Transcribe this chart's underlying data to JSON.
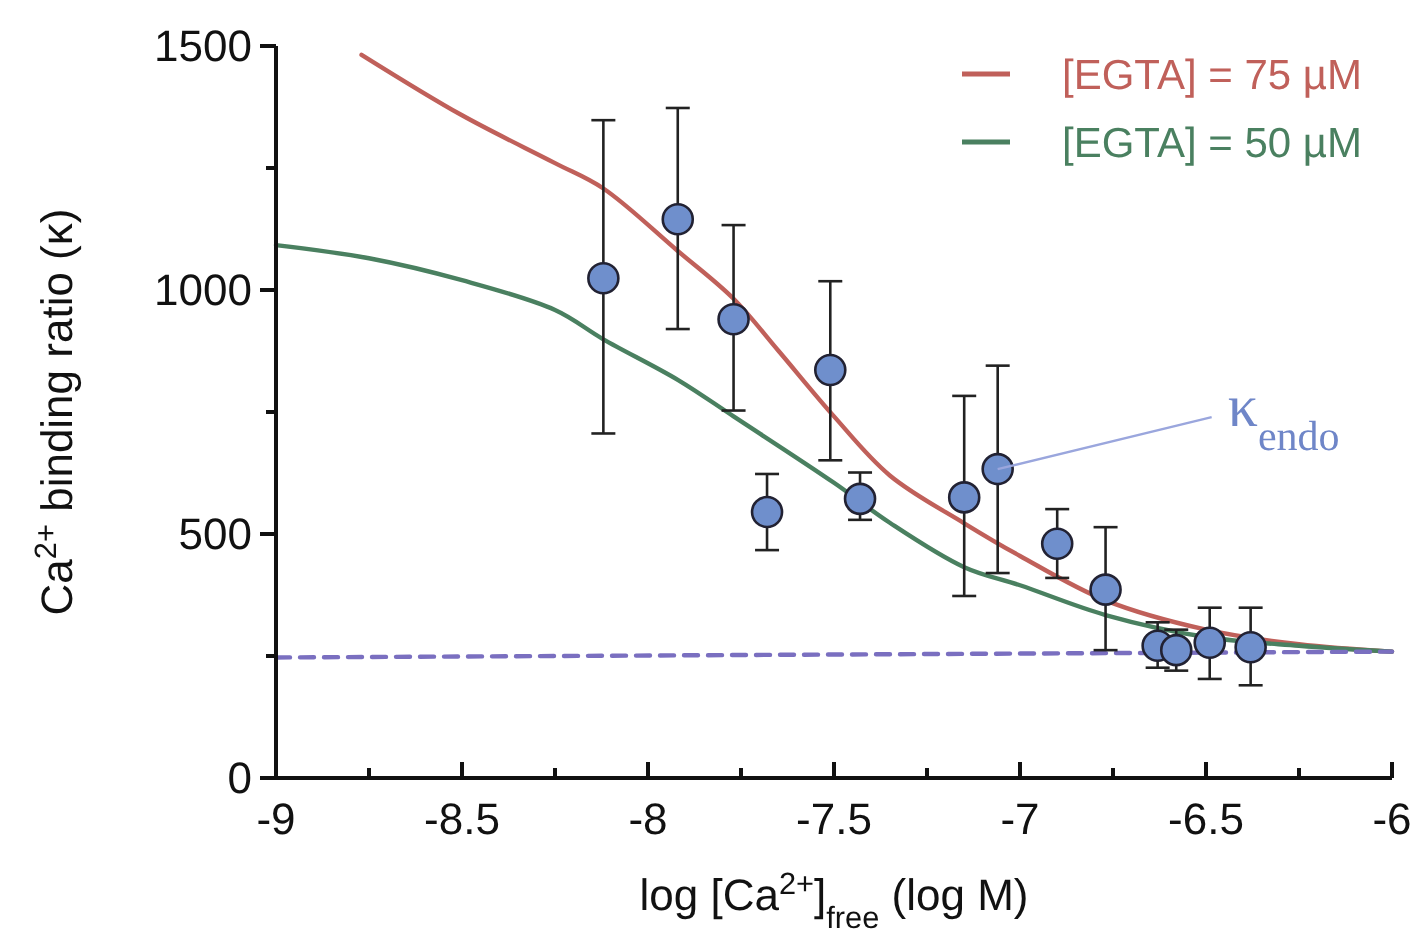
{
  "chart_data": {
    "type": "scatter",
    "xlabel": "log [Ca$^{2+}$]$_{free}$ (log M)",
    "ylabel": "Ca$^{2+}$ binding ratio (κ)",
    "xlim": [
      -9,
      -6
    ],
    "ylim": [
      0,
      1500
    ],
    "xticks": [
      -9,
      {
        "value": -8.75,
        "label": null
      },
      -8.5,
      {
        "value": -8.25,
        "label": null
      },
      -8,
      {
        "value": -7.75,
        "label": null
      },
      -7.5,
      {
        "value": -7.25,
        "label": null
      },
      -7,
      {
        "value": -6.75,
        "label": null
      },
      -6.5,
      {
        "value": -6.25,
        "label": null
      },
      -6
    ],
    "yticks": [
      0,
      {
        "value": 250,
        "label": null
      },
      500,
      {
        "value": 750,
        "label": null
      },
      1000,
      {
        "value": 1250,
        "label": null
      },
      1500
    ],
    "grid": false,
    "legend": "top right",
    "series": [
      {
        "name": "[EGTA] = 75 µM",
        "type": "line",
        "color": "#c0605a",
        "line_style": "solid",
        "x": [
          -8.77,
          -8.5,
          -8.25,
          -8.12,
          -7.92,
          -7.77,
          -7.65,
          -7.5,
          -7.35,
          -7.15,
          -7,
          -6.77,
          -6.5,
          -6.25,
          -6
        ],
        "values": [
          1482,
          1358,
          1260,
          1208,
          1080,
          982,
          876,
          741,
          620,
          522,
          455,
          364,
          304,
          274,
          259
        ]
      },
      {
        "name": "[EGTA] = 50 µM",
        "type": "line",
        "color": "#4a8060",
        "line_style": "solid",
        "x": [
          -9,
          -8.75,
          -8.5,
          -8.25,
          -8.12,
          -7.92,
          -7.77,
          -7.5,
          -7.35,
          -7.15,
          -7,
          -6.77,
          -6.5,
          -6.25,
          -6
        ],
        "values": [
          1092,
          1065,
          1020,
          959,
          899,
          816,
          741,
          605,
          523,
          432,
          395,
          334,
          289,
          271,
          259
        ]
      },
      {
        "type": "line",
        "color": "#7a6fc0",
        "line_style": "dashed",
        "x": [
          -9,
          -6
        ],
        "values": [
          247,
          259
        ]
      },
      {
        "marker": "circle",
        "color": "#6f8fcc",
        "x": [
          -8.12,
          -7.92,
          -7.77,
          -7.68,
          -7.51,
          -7.43,
          -7.15,
          -7.06,
          -6.9,
          -6.77,
          -6.63,
          -6.58,
          -6.49,
          -6.38
        ],
        "values": [
          1024,
          1145,
          940,
          545,
          836,
          572,
          575,
          633,
          480,
          386,
          271,
          262,
          277,
          268
        ],
        "errors": [
          [
            706,
            1348
          ],
          [
            920,
            1373
          ],
          [
            753,
            1133
          ],
          [
            467,
            623
          ],
          [
            651,
            1018
          ],
          [
            529,
            626
          ],
          [
            373,
            783
          ],
          [
            420,
            845
          ],
          [
            410,
            551
          ],
          [
            262,
            514
          ],
          [
            226,
            319
          ],
          [
            220,
            304
          ],
          [
            203,
            349
          ],
          [
            190,
            349
          ]
        ]
      }
    ],
    "annotations": [
      {
        "text": "κ$_{endo}$",
        "x": -7.06,
        "y": 633
      }
    ]
  }
}
